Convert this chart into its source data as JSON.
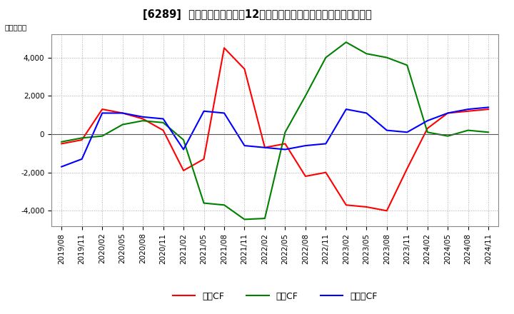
{
  "title": "[6289]  キャッシュフローの12か月移動合計の対前年同期増減額の推移",
  "ylabel": "（百万円）",
  "x_labels": [
    "2019/08",
    "2019/11",
    "2020/02",
    "2020/05",
    "2020/08",
    "2020/11",
    "2021/02",
    "2021/05",
    "2021/08",
    "2021/11",
    "2022/02",
    "2022/05",
    "2022/08",
    "2022/11",
    "2023/02",
    "2023/05",
    "2023/08",
    "2023/11",
    "2024/02",
    "2024/05",
    "2024/08",
    "2024/11"
  ],
  "series": {
    "営業CF": {
      "color": "#ff0000",
      "data": [
        -500,
        -300,
        1300,
        1100,
        800,
        200,
        -1900,
        -1300,
        4500,
        3400,
        -700,
        -500,
        -2200,
        -2000,
        -3700,
        -3800,
        -4000,
        -1800,
        300,
        1100,
        1200,
        1300
      ]
    },
    "投資CF": {
      "color": "#008000",
      "data": [
        -400,
        -200,
        -100,
        500,
        700,
        600,
        -300,
        -3600,
        -3700,
        -4450,
        -4400,
        100,
        2000,
        4000,
        4800,
        4200,
        4000,
        3600,
        100,
        -100,
        200,
        100
      ]
    },
    "フリーCF": {
      "color": "#0000ff",
      "data": [
        -1700,
        -1300,
        1100,
        1100,
        900,
        800,
        -800,
        1200,
        1100,
        -600,
        -700,
        -800,
        -600,
        -500,
        1300,
        1100,
        200,
        100,
        700,
        1100,
        1300,
        1400
      ]
    }
  },
  "ylim": [
    -4800,
    5200
  ],
  "yticks": [
    -4000,
    -2000,
    0,
    2000,
    4000
  ],
  "legend_labels": [
    "営業CF",
    "投資CF",
    "フリーCF"
  ],
  "background_color": "#ffffff",
  "grid_color": "#aaaaaa",
  "title_fontsize": 10.5,
  "axis_fontsize": 7.5
}
